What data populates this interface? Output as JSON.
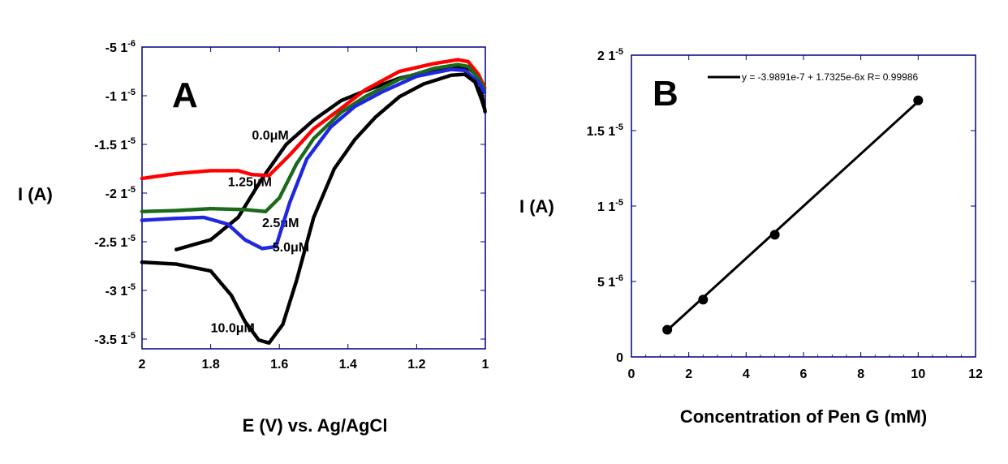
{
  "chart_data": [
    {
      "panel": "A",
      "type": "scatter",
      "xlabel": "E (V) vs. Ag/AgCl",
      "ylabel": "I (A)",
      "xlim": [
        2,
        1
      ],
      "ylim": [
        -3.6e-05,
        -5e-06
      ],
      "x_ticks": [
        {
          "v": 2,
          "label": "2"
        },
        {
          "v": 1.8,
          "label": "1.8"
        },
        {
          "v": 1.6,
          "label": "1.6"
        },
        {
          "v": 1.4,
          "label": "1.4"
        },
        {
          "v": 1.2,
          "label": "1.2"
        },
        {
          "v": 1,
          "label": "1"
        }
      ],
      "y_ticks": [
        {
          "v": -5e-06,
          "mant": "-5",
          "exp": "-6"
        },
        {
          "v": -1e-05,
          "mant": "-1",
          "exp": "-5"
        },
        {
          "v": -1.5e-05,
          "mant": "-1.5",
          "exp": "-5"
        },
        {
          "v": -2e-05,
          "mant": "-2",
          "exp": "-5"
        },
        {
          "v": -2.5e-05,
          "mant": "-2.5",
          "exp": "-5"
        },
        {
          "v": -3e-05,
          "mant": "-3",
          "exp": "-5"
        },
        {
          "v": -3.5e-05,
          "mant": "-3.5",
          "exp": "-5"
        }
      ],
      "unit_prefix": "1",
      "unit_exp_base": "0",
      "series": [
        {
          "label": "0.0μM",
          "color": "#000000",
          "label_at": [
            1.68,
            -1.45e-05
          ],
          "points": [
            [
              1.9,
              -2.58e-05
            ],
            [
              1.8,
              -2.48e-05
            ],
            [
              1.72,
              -2.25e-05
            ],
            [
              1.65,
              -1.85e-05
            ],
            [
              1.58,
              -1.5e-05
            ],
            [
              1.5,
              -1.25e-05
            ],
            [
              1.42,
              -1.05e-05
            ],
            [
              1.35,
              -9.5e-06
            ],
            [
              1.25,
              -8.2e-06
            ],
            [
              1.15,
              -7.4e-06
            ],
            [
              1.08,
              -7e-06
            ],
            [
              1.05,
              -7.2e-06
            ],
            [
              1.02,
              -8e-06
            ],
            [
              1.0,
              -1.18e-05
            ]
          ]
        },
        {
          "label": "1.25μM",
          "color": "#ff0000",
          "label_at": [
            1.75,
            -1.93e-05
          ],
          "points": [
            [
              2.0,
              -1.85e-05
            ],
            [
              1.9,
              -1.8e-05
            ],
            [
              1.8,
              -1.77e-05
            ],
            [
              1.72,
              -1.77e-05
            ],
            [
              1.68,
              -1.81e-05
            ],
            [
              1.63,
              -1.82e-05
            ],
            [
              1.57,
              -1.61e-05
            ],
            [
              1.5,
              -1.34e-05
            ],
            [
              1.42,
              -1.13e-05
            ],
            [
              1.35,
              -9.4e-06
            ],
            [
              1.25,
              -7.5e-06
            ],
            [
              1.15,
              -6.7e-06
            ],
            [
              1.08,
              -6.3e-06
            ],
            [
              1.05,
              -6.5e-06
            ],
            [
              1.02,
              -7.8e-06
            ],
            [
              1.0,
              -9.3e-06
            ]
          ]
        },
        {
          "label": "2.5μM",
          "color": "#1a6a1a",
          "label_at": [
            1.65,
            -2.35e-05
          ],
          "points": [
            [
              2.0,
              -2.19e-05
            ],
            [
              1.9,
              -2.18e-05
            ],
            [
              1.8,
              -2.16e-05
            ],
            [
              1.7,
              -2.17e-05
            ],
            [
              1.64,
              -2.19e-05
            ],
            [
              1.6,
              -2.05e-05
            ],
            [
              1.55,
              -1.7e-05
            ],
            [
              1.5,
              -1.44e-05
            ],
            [
              1.42,
              -1.17e-05
            ],
            [
              1.35,
              -1.01e-05
            ],
            [
              1.25,
              -8.3e-06
            ],
            [
              1.15,
              -7.2e-06
            ],
            [
              1.08,
              -6.8e-06
            ],
            [
              1.05,
              -7e-06
            ],
            [
              1.02,
              -8.2e-06
            ],
            [
              1.0,
              -9.5e-06
            ]
          ]
        },
        {
          "label": "5.0μM",
          "color": "#1f27e0",
          "label_at": [
            1.62,
            -2.6e-05
          ],
          "points": [
            [
              2.0,
              -2.28e-05
            ],
            [
              1.9,
              -2.26e-05
            ],
            [
              1.82,
              -2.25e-05
            ],
            [
              1.75,
              -2.32e-05
            ],
            [
              1.7,
              -2.48e-05
            ],
            [
              1.65,
              -2.57e-05
            ],
            [
              1.61,
              -2.55e-05
            ],
            [
              1.57,
              -2.1e-05
            ],
            [
              1.52,
              -1.65e-05
            ],
            [
              1.45,
              -1.32e-05
            ],
            [
              1.38,
              -1.11e-05
            ],
            [
              1.3,
              -9.6e-06
            ],
            [
              1.2,
              -8e-06
            ],
            [
              1.1,
              -7.3e-06
            ],
            [
              1.06,
              -7.4e-06
            ],
            [
              1.02,
              -8.6e-06
            ],
            [
              1.0,
              -9.8e-06
            ]
          ]
        },
        {
          "label": "10.0μM",
          "color": "#000000",
          "label_at": [
            1.8,
            -3.43e-05
          ],
          "points": [
            [
              2.0,
              -2.71e-05
            ],
            [
              1.9,
              -2.73e-05
            ],
            [
              1.8,
              -2.8e-05
            ],
            [
              1.74,
              -3.05e-05
            ],
            [
              1.7,
              -3.32e-05
            ],
            [
              1.66,
              -3.51e-05
            ],
            [
              1.63,
              -3.54e-05
            ],
            [
              1.59,
              -3.35e-05
            ],
            [
              1.55,
              -2.9e-05
            ],
            [
              1.5,
              -2.25e-05
            ],
            [
              1.44,
              -1.75e-05
            ],
            [
              1.38,
              -1.45e-05
            ],
            [
              1.32,
              -1.22e-05
            ],
            [
              1.25,
              -1.01e-05
            ],
            [
              1.18,
              -8.8e-06
            ],
            [
              1.1,
              -7.9e-06
            ],
            [
              1.06,
              -7.8e-06
            ],
            [
              1.03,
              -8.6e-06
            ],
            [
              1.01,
              -1.05e-05
            ],
            [
              1.0,
              -1.16e-05
            ]
          ]
        }
      ]
    },
    {
      "panel": "B",
      "type": "scatter",
      "xlabel": "Concentration of Pen G (mM)",
      "ylabel": "I (A)",
      "xlim": [
        0,
        12
      ],
      "ylim": [
        0,
        2e-05
      ],
      "x_ticks": [
        {
          "v": 0,
          "label": "0"
        },
        {
          "v": 2,
          "label": "2"
        },
        {
          "v": 4,
          "label": "4"
        },
        {
          "v": 6,
          "label": "6"
        },
        {
          "v": 8,
          "label": "8"
        },
        {
          "v": 10,
          "label": "10"
        },
        {
          "v": 12,
          "label": "12"
        }
      ],
      "y_ticks": [
        {
          "v": 0,
          "mant": "0",
          "exp": ""
        },
        {
          "v": 5e-06,
          "mant": "5",
          "exp": "-6"
        },
        {
          "v": 1e-05,
          "mant": "1",
          "exp": "-5"
        },
        {
          "v": 1.5e-05,
          "mant": "1.5",
          "exp": "-5"
        },
        {
          "v": 2e-05,
          "mant": "2",
          "exp": "-5"
        }
      ],
      "points": [
        [
          1.25,
          1.8e-06
        ],
        [
          2.5,
          3.8e-06
        ],
        [
          5.0,
          8.1e-06
        ],
        [
          10.0,
          1.7e-05
        ]
      ],
      "fit": {
        "intercept": -3.9891e-07,
        "slope": 1.7325e-06,
        "x_range": [
          1.25,
          10.0
        ]
      },
      "legend_text": "y = -3.9891e-7 + 1.7325e-6x   R= 0.99986",
      "legend_position": "top"
    }
  ]
}
